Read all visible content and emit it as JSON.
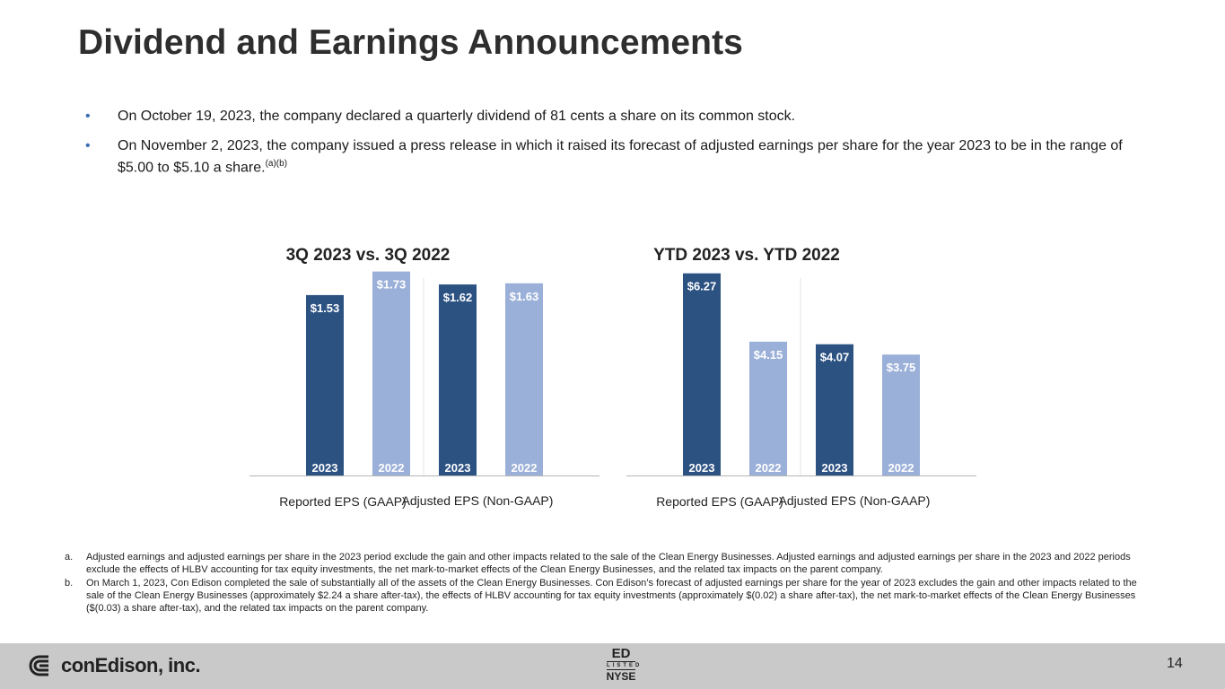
{
  "title": "Dividend and Earnings Announcements",
  "bullets": [
    {
      "text": "On October 19, 2023, the company declared a quarterly dividend of 81 cents a share on its common stock.",
      "sup": ""
    },
    {
      "text": "On November 2, 2023, the company issued a press release in which it raised its forecast of adjusted earnings per share for the year 2023 to be in the range of $5.00 to $5.10 a share.",
      "sup": "(a)(b)"
    }
  ],
  "bullet_marker": "•",
  "colors": {
    "dark_bar": "#2c5282",
    "light_bar": "#9bb0d8",
    "bullet": "#3d6fb4",
    "footer": "#c9c9c9"
  },
  "chart_data": [
    {
      "type": "bar",
      "title": "3Q 2023 vs. 3Q 2022",
      "groups": [
        "Reported EPS (GAAP)",
        "Adjusted EPS (Non-GAAP)"
      ],
      "series": [
        {
          "name": "2023",
          "values": [
            1.53,
            1.62
          ]
        },
        {
          "name": "2022",
          "values": [
            1.73,
            1.63
          ]
        }
      ],
      "bars": [
        {
          "year": "2023",
          "value": 1.53,
          "label": "$1.53"
        },
        {
          "year": "2022",
          "value": 1.73,
          "label": "$1.73"
        },
        {
          "year": "2023",
          "value": 1.62,
          "label": "$1.62"
        },
        {
          "year": "2022",
          "value": 1.63,
          "label": "$1.63"
        }
      ],
      "ylim": [
        0,
        1.75
      ]
    },
    {
      "type": "bar",
      "title": "YTD 2023 vs. YTD 2022",
      "groups": [
        "Reported EPS (GAAP)",
        "Adjusted EPS (Non-GAAP)"
      ],
      "series": [
        {
          "name": "2023",
          "values": [
            6.27,
            4.07
          ]
        },
        {
          "name": "2022",
          "values": [
            4.15,
            3.75
          ]
        }
      ],
      "bars": [
        {
          "year": "2023",
          "value": 6.27,
          "label": "$6.27"
        },
        {
          "year": "2022",
          "value": 4.15,
          "label": "$4.15"
        },
        {
          "year": "2023",
          "value": 4.07,
          "label": "$4.07"
        },
        {
          "year": "2022",
          "value": 3.75,
          "label": "$3.75"
        }
      ],
      "ylim": [
        0,
        6.4
      ]
    }
  ],
  "footnotes": [
    {
      "label": "a.",
      "text": "Adjusted earnings and adjusted earnings per share in the 2023 period exclude the gain and other impacts related to the sale of the Clean Energy Businesses. Adjusted earnings and adjusted earnings per share in the 2023 and 2022 periods exclude the effects of HLBV accounting for tax equity investments, the net mark-to-market effects of the Clean Energy Businesses, and the related tax impacts on the parent company."
    },
    {
      "label": "b.",
      "text": "On March 1, 2023, Con Edison completed the sale of substantially all of the assets of the Clean Energy Businesses. Con Edison’s forecast of adjusted earnings per share for the year of 2023 excludes the gain and other impacts related to the sale of the Clean Energy Businesses (approximately $2.24 a share after-tax), the effects of HLBV accounting for tax equity investments (approximately $(0.02) a share after-tax), the net mark-to-market effects of the Clean Energy Businesses ($(0.03) a share after-tax), and the related tax impacts on the parent company."
    }
  ],
  "footer": {
    "logo_text": "conEdison, inc.",
    "logo_icon": "conedison-logo-icon",
    "nyse_top": "ED",
    "nyse_mid": "LISTED",
    "nyse_bottom": "NYSE",
    "page_number": "14"
  }
}
